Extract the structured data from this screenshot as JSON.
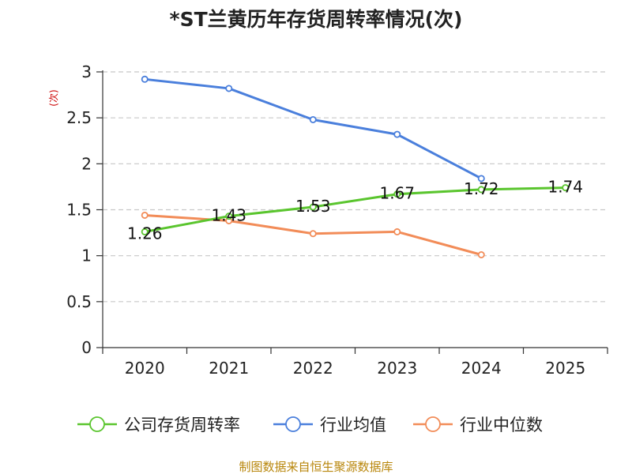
{
  "chart_data": {
    "type": "line",
    "title": "*ST兰黄历年存货周转率情况(次)",
    "ylabel": "(次)",
    "xlabel": "",
    "categories": [
      "2020",
      "2021",
      "2022",
      "2023",
      "2024",
      "2025"
    ],
    "ylim": [
      0,
      3
    ],
    "yticks": [
      "0",
      "0.5",
      "1",
      "1.5",
      "2",
      "2.5",
      "3"
    ],
    "ytick_values": [
      0,
      0.5,
      1,
      1.5,
      2,
      2.5,
      3
    ],
    "grid": true,
    "legend_position": "bottom",
    "series": [
      {
        "name": "公司存货周转率",
        "color": "#5ac52e",
        "values": [
          1.26,
          1.43,
          1.53,
          1.67,
          1.72,
          1.74
        ],
        "labels": [
          "1.26",
          "1.43",
          "1.53",
          "1.67",
          "1.72",
          "1.74"
        ]
      },
      {
        "name": "行业均值",
        "color": "#4a7fdc",
        "values": [
          2.92,
          2.82,
          2.48,
          2.32,
          1.84,
          null
        ],
        "labels": []
      },
      {
        "name": "行业中位数",
        "color": "#f28c58",
        "values": [
          1.44,
          1.38,
          1.24,
          1.26,
          1.01,
          null
        ],
        "labels": []
      }
    ]
  },
  "source": "制图数据来自恒生聚源数据库"
}
